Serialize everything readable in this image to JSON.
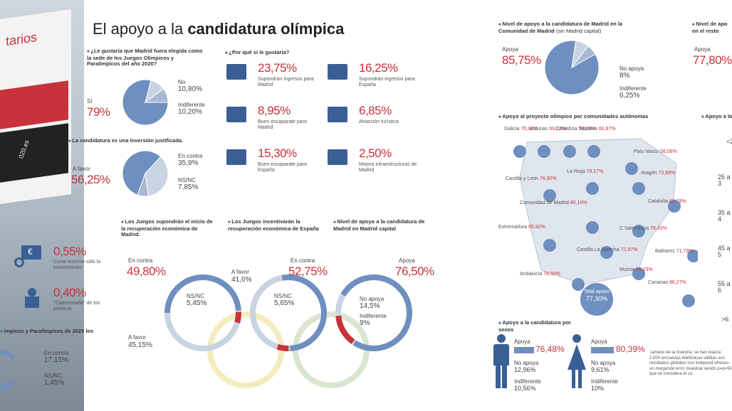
{
  "title": {
    "normal": "El apoyo a la ",
    "bold": "candidatura olímpica"
  },
  "photo": {
    "text1": "tarios",
    "text2": "020.es"
  },
  "q1": {
    "question": "¿Le gustaría que Madrid fuera elegida como la sede de los Juegos Olímpicos y Paralímpicos del año 2020?",
    "si_label": "Sí",
    "si_value": "79%",
    "no_label": "No",
    "no_value": "10,80%",
    "indif_label": "Indiferente",
    "indif_value": "10,20%"
  },
  "q2": {
    "question": "La candidatura es una inversión justificada.",
    "favor_label": "A favor",
    "favor_value": "56,25%",
    "contra_label": "En contra",
    "contra_value": "35,9%",
    "nsnc_label": "NS/NC",
    "nsnc_value": "7,85%"
  },
  "why": {
    "question": "¿Por qué sí le gustaría?",
    "items": [
      {
        "value": "23,75%",
        "label": "Supondrán ingresos para Madrid",
        "icon": "money-icon"
      },
      {
        "value": "16,25%",
        "label": "Supondrán ingresos para España",
        "icon": "money-icon"
      },
      {
        "value": "8,95%",
        "label": "Buen escaparate para Madrid",
        "icon": "thumbs-up-icon"
      },
      {
        "value": "6,85%",
        "label": "Atracción turística",
        "icon": "camera-icon"
      },
      {
        "value": "15,30%",
        "label": "Buen escaparate para España",
        "icon": "thumbs-up-icon"
      },
      {
        "value": "2,50%",
        "label": "Mejora infraestructuras de Madrid",
        "icon": "pin-icon"
      }
    ]
  },
  "cost": {
    "value": "0,55%",
    "label": "Coste enorme solo la presentación"
  },
  "cabez": {
    "value": "0,40%",
    "label": "\"Cabezonada\" de los políticos"
  },
  "left_bottom": {
    "title": "impicos y Paralímpicos de 2020 leo",
    "contra_label": "En contra",
    "contra_value": "17,15%",
    "nsnc_label": "NS/NC",
    "nsnc_value": "1,45%"
  },
  "rings": {
    "r1": {
      "question": "Los Juegos supondrán el inicio de la recuperación económica de Madrid.",
      "contra_label": "En contra",
      "contra_value": "49,80%",
      "nsnc_label": "NS/NC",
      "nsnc_value": "5,45%",
      "favor_label": "A favor",
      "favor_value": "45,15%"
    },
    "r2": {
      "question": "Los Juegos incentivarán la recuperación económica de España",
      "favor_label": "A favor",
      "favor_value": "41,6%",
      "contra_label": "En contra",
      "contra_value": "52,75%",
      "nsnc_label": "NS/NC",
      "nsnc_value": "5,65%"
    },
    "r3": {
      "question": "Nivel de apoyo a la candidatura de Madrid en Madrid capital",
      "apoya_label": "Apoya",
      "apoya_value": "76,50%",
      "noapoya_label": "No apoya",
      "noapoya_value": "14,5%",
      "indif_label": "Indiferente",
      "indif_value": "9%"
    }
  },
  "comunidad": {
    "question": "Nivel de apoyo a la candidatura de Madrid en la Comunidad de Madrid",
    "question_sub": "(sin Madrid capital)",
    "apoya_label": "Apoya",
    "apoya_value": "85,75%",
    "noapoya_label": "No apoya",
    "noapoya_value": "8%",
    "indif_label": "Indiferente",
    "indif_value": "6,25%"
  },
  "resto": {
    "question": "Nivel de apo en el resto",
    "apoya_label": "Apoya",
    "apoya_value": "77,80%"
  },
  "ccaa": {
    "question": "Apoyo al proyecto olímpico por comunidades autónomas",
    "regions": [
      {
        "name": "Galicia",
        "value": "76,92%"
      },
      {
        "name": "Asturias",
        "value": "69,77%"
      },
      {
        "name": "Cantabria",
        "value": "58,33%"
      },
      {
        "name": "Navarra",
        "value": "60,87%"
      },
      {
        "name": "País Vasco",
        "value": "58,06%"
      },
      {
        "name": "La Rioja",
        "value": "79,17%"
      },
      {
        "name": "Aragón",
        "value": "73,68%"
      },
      {
        "name": "Castilla y León",
        "value": "76,92%"
      },
      {
        "name": "Cataluña",
        "value": "62,79%"
      },
      {
        "name": "Comunidad de Madrid",
        "value": "80,10%"
      },
      {
        "name": "C.Valenciana",
        "value": "76,45%"
      },
      {
        "name": "Extremadura",
        "value": "85,92%"
      },
      {
        "name": "Castilla La Mancha",
        "value": "72,97%"
      },
      {
        "name": "Baleares",
        "value": "71,79%"
      },
      {
        "name": "Murcia",
        "value": "69,23%"
      },
      {
        "name": "Andalucía",
        "value": "78,92%"
      },
      {
        "name": "Canarias",
        "value": "86,27%"
      }
    ],
    "total_label": "Total apoyo",
    "total_value": "77,30%"
  },
  "edad": {
    "question": "Apoyo a la",
    "labels": [
      "<2",
      "25 a 3",
      "35 a 4",
      "45 a 5",
      "55 a 6",
      ">6"
    ]
  },
  "sexo": {
    "question": "Apoyo a la candidatura por sexos",
    "men": {
      "apoya_label": "Apoya",
      "apoya_value": "76,48%",
      "apoya_frac": 0.7648,
      "noapoya_label": "No apoya",
      "noapoya_value": "12,96%",
      "indif_label": "Indiferente",
      "indif_value": "10,56%"
    },
    "women": {
      "apoya_label": "Apoya",
      "apoya_value": "80,39%",
      "apoya_frac": 0.8039,
      "noapoya_label": "No apoya",
      "noapoya_value": "9,61%",
      "indif_label": "Indiferente",
      "indif_value": "10%"
    }
  },
  "note": "Tamaño de la muestra: se han realiza 2.000 encuestas telefónicas válidas sus resultados globales con independ ofrecen un margende error muestral siendo p=q=50 que se considera el ca",
  "chart_data": [
    {
      "type": "pie",
      "categories": [
        "Sí",
        "No",
        "Indiferente"
      ],
      "values": [
        79,
        10.8,
        10.2
      ]
    },
    {
      "type": "pie",
      "categories": [
        "A favor",
        "En contra",
        "NS/NC"
      ],
      "values": [
        56.25,
        35.9,
        7.85
      ]
    },
    {
      "type": "bar",
      "categories": [
        "Supondrán ingresos para Madrid",
        "Supondrán ingresos para España",
        "Buen escaparate para Madrid",
        "Atracción turística",
        "Buen escaparate para España",
        "Mejora infraestructuras de Madrid",
        "Coste enorme solo la presentación",
        "\"Cabezonada\" de los políticos"
      ],
      "values": [
        23.75,
        16.25,
        8.95,
        6.85,
        15.3,
        2.5,
        0.55,
        0.4
      ]
    },
    {
      "type": "pie",
      "categories": [
        "En contra",
        "NS/NC",
        "A favor"
      ],
      "values": [
        49.8,
        5.45,
        45.15
      ]
    },
    {
      "type": "pie",
      "categories": [
        "A favor",
        "En contra",
        "NS/NC"
      ],
      "values": [
        41.6,
        52.75,
        5.65
      ]
    },
    {
      "type": "pie",
      "categories": [
        "Apoya",
        "No apoya",
        "Indiferente"
      ],
      "values": [
        76.5,
        14.5,
        9
      ]
    },
    {
      "type": "pie",
      "categories": [
        "Apoya",
        "No apoya",
        "Indiferente"
      ],
      "values": [
        85.75,
        8,
        6.25
      ]
    },
    {
      "type": "bar",
      "categories": [
        "Hombres",
        "Mujeres"
      ],
      "series": [
        {
          "name": "Apoya",
          "values": [
            76.48,
            80.39
          ]
        },
        {
          "name": "No apoya",
          "values": [
            12.96,
            9.61
          ]
        },
        {
          "name": "Indiferente",
          "values": [
            10.56,
            10
          ]
        }
      ]
    }
  ]
}
